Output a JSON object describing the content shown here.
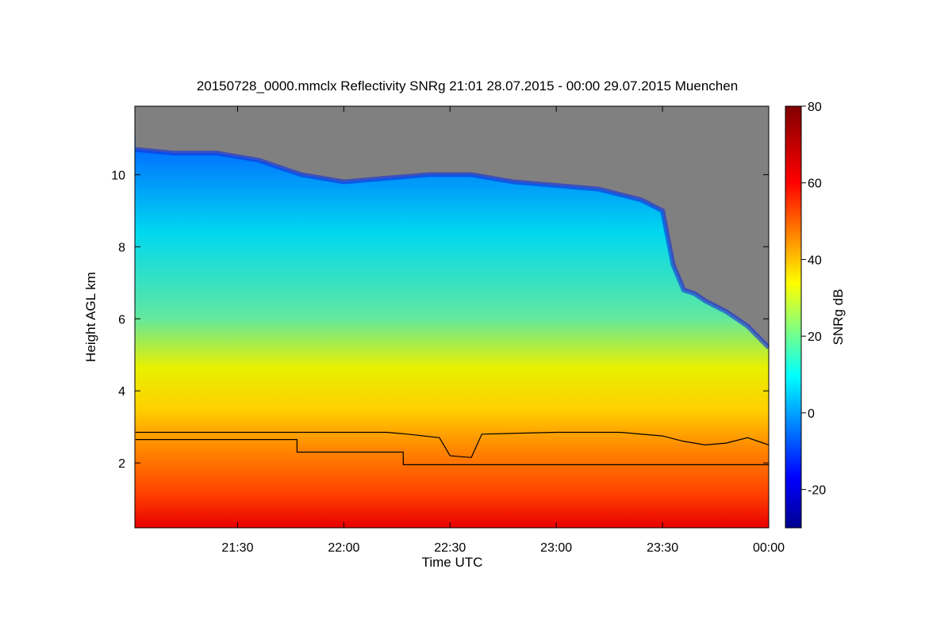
{
  "chart_data": {
    "type": "heatmap",
    "title": "20150728_0000.mmclx Reflectivity SNRg   21:01 28.07.2015 - 00:00 29.07.2015 Muenchen",
    "xlabel": "Time UTC",
    "ylabel": "Height AGL km",
    "x_range": [
      "21:01",
      "00:00"
    ],
    "x_ticks": [
      {
        "t": 21.5,
        "label": "21:30"
      },
      {
        "t": 22.0,
        "label": "22:00"
      },
      {
        "t": 22.5,
        "label": "22:30"
      },
      {
        "t": 23.0,
        "label": "23:00"
      },
      {
        "t": 23.5,
        "label": "23:30"
      },
      {
        "t": 24.0,
        "label": "00:00"
      }
    ],
    "ylim": [
      0.2,
      11.9
    ],
    "y_ticks": [
      {
        "v": 2,
        "label": "2"
      },
      {
        "v": 4,
        "label": "4"
      },
      {
        "v": 6,
        "label": "6"
      },
      {
        "v": 8,
        "label": "8"
      },
      {
        "v": 10,
        "label": "10"
      }
    ],
    "colorbar": {
      "label": "SNRg dB",
      "range": [
        -30,
        80
      ],
      "ticks": [
        {
          "v": -20,
          "label": "-20"
        },
        {
          "v": 0,
          "label": "0"
        },
        {
          "v": 20,
          "label": "20"
        },
        {
          "v": 40,
          "label": "40"
        },
        {
          "v": 60,
          "label": "60"
        },
        {
          "v": 80,
          "label": "80"
        }
      ]
    },
    "no_signal_color": "#808080",
    "cloud_top_km": [
      [
        21.02,
        10.7
      ],
      [
        21.2,
        10.6
      ],
      [
        21.4,
        10.6
      ],
      [
        21.6,
        10.4
      ],
      [
        21.8,
        10.0
      ],
      [
        22.0,
        9.8
      ],
      [
        22.2,
        9.9
      ],
      [
        22.4,
        10.0
      ],
      [
        22.6,
        10.0
      ],
      [
        22.8,
        9.8
      ],
      [
        23.0,
        9.7
      ],
      [
        23.2,
        9.6
      ],
      [
        23.4,
        9.3
      ],
      [
        23.5,
        9.0
      ],
      [
        23.55,
        7.5
      ],
      [
        23.6,
        6.8
      ],
      [
        23.65,
        6.7
      ],
      [
        23.7,
        6.5
      ],
      [
        23.8,
        6.2
      ],
      [
        23.9,
        5.8
      ],
      [
        24.0,
        5.2
      ]
    ],
    "upper_boundary_km": [
      [
        21.02,
        2.85
      ],
      [
        21.5,
        2.85
      ],
      [
        22.0,
        2.85
      ],
      [
        22.2,
        2.85
      ],
      [
        22.3,
        2.8
      ],
      [
        22.45,
        2.7
      ],
      [
        22.5,
        2.2
      ],
      [
        22.6,
        2.15
      ],
      [
        22.65,
        2.8
      ],
      [
        23.0,
        2.85
      ],
      [
        23.3,
        2.85
      ],
      [
        23.5,
        2.75
      ],
      [
        23.6,
        2.6
      ],
      [
        23.7,
        2.5
      ],
      [
        23.8,
        2.55
      ],
      [
        23.9,
        2.7
      ],
      [
        24.0,
        2.5
      ]
    ],
    "lower_boundary_km": [
      [
        21.02,
        2.65
      ],
      [
        21.78,
        2.65
      ],
      [
        21.78,
        2.3
      ],
      [
        22.28,
        2.3
      ],
      [
        22.28,
        1.95
      ],
      [
        24.0,
        1.95
      ]
    ]
  }
}
